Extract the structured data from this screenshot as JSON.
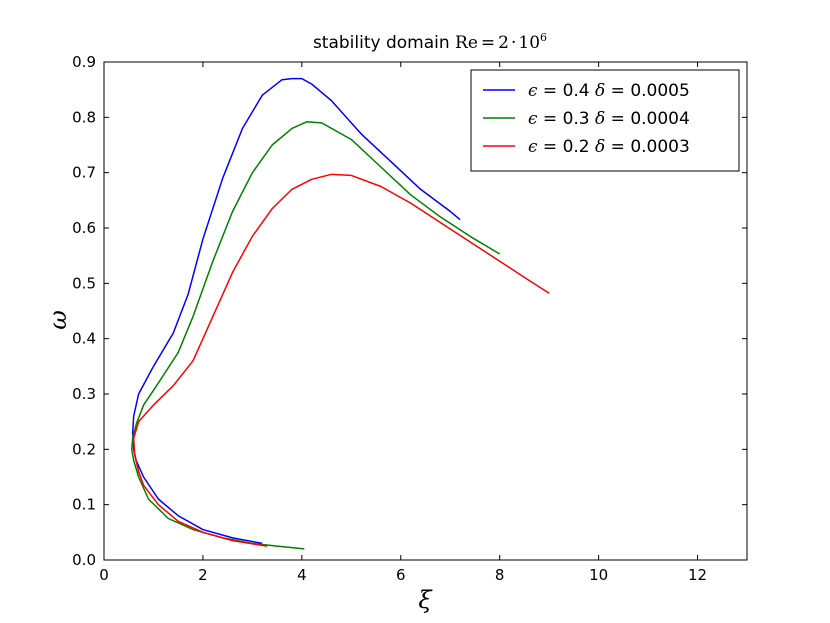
{
  "chart_data": {
    "type": "line",
    "title": {
      "prefix": "stability domain ",
      "re": "Re",
      "equals": "=",
      "mantissa": "2",
      "times": "·",
      "base": "10",
      "exponent": "6"
    },
    "xlabel": "ξ",
    "ylabel": "ω",
    "xlim": [
      0,
      13
    ],
    "ylim": [
      0,
      0.9
    ],
    "xticks": [
      "0",
      "2",
      "4",
      "6",
      "8",
      "10",
      "12"
    ],
    "yticks": [
      "0.0",
      "0.1",
      "0.2",
      "0.3",
      "0.4",
      "0.5",
      "0.6",
      "0.7",
      "0.8",
      "0.9"
    ],
    "grid": false,
    "legend_position": "top-right",
    "series": [
      {
        "name": "ε = 0.4 δ = 0.0005",
        "legend": {
          "eps_symbol": "ϵ",
          "eps_value": " = 0.4 ",
          "delta_symbol": "δ",
          "delta_value": " = 0.0005"
        },
        "color": "#0000ff",
        "x": [
          3.2,
          2.6,
          2.0,
          1.5,
          1.1,
          0.8,
          0.65,
          0.6,
          0.58,
          0.6,
          0.7,
          1.0,
          1.4,
          1.7,
          2.0,
          2.4,
          2.8,
          3.2,
          3.6,
          3.8,
          4.0,
          4.2,
          4.6,
          5.2,
          5.8,
          6.4,
          7.0,
          7.2
        ],
        "y": [
          0.03,
          0.04,
          0.055,
          0.08,
          0.11,
          0.15,
          0.18,
          0.2,
          0.23,
          0.26,
          0.3,
          0.35,
          0.41,
          0.48,
          0.58,
          0.69,
          0.78,
          0.84,
          0.868,
          0.87,
          0.87,
          0.86,
          0.83,
          0.77,
          0.72,
          0.67,
          0.63,
          0.615
        ]
      },
      {
        "name": "ε = 0.3 δ = 0.0004",
        "legend": {
          "eps_symbol": "ϵ",
          "eps_value": " = 0.3 ",
          "delta_symbol": "δ",
          "delta_value": " = 0.0004"
        },
        "color": "#008000",
        "x": [
          4.05,
          3.5,
          3.0,
          2.4,
          1.8,
          1.3,
          0.9,
          0.7,
          0.6,
          0.56,
          0.58,
          0.65,
          0.8,
          1.1,
          1.5,
          1.8,
          2.2,
          2.6,
          3.0,
          3.4,
          3.8,
          4.1,
          4.4,
          5.0,
          5.6,
          6.2,
          6.8,
          7.4,
          8.0
        ],
        "y": [
          0.02,
          0.025,
          0.03,
          0.04,
          0.055,
          0.075,
          0.11,
          0.15,
          0.18,
          0.2,
          0.22,
          0.245,
          0.28,
          0.32,
          0.375,
          0.44,
          0.54,
          0.63,
          0.7,
          0.75,
          0.78,
          0.792,
          0.79,
          0.76,
          0.71,
          0.66,
          0.62,
          0.585,
          0.553
        ]
      },
      {
        "name": "ε = 0.2 δ = 0.0003",
        "legend": {
          "eps_symbol": "ϵ",
          "eps_value": " = 0.2 ",
          "delta_symbol": "δ",
          "delta_value": " = 0.0003"
        },
        "color": "#ff0000",
        "x": [
          3.3,
          2.6,
          2.0,
          1.5,
          1.1,
          0.8,
          0.7,
          0.62,
          0.6,
          0.7,
          1.0,
          1.4,
          1.8,
          2.2,
          2.6,
          3.0,
          3.4,
          3.8,
          4.2,
          4.6,
          5.0,
          5.6,
          6.2,
          6.8,
          7.4,
          8.0,
          8.6,
          9.0
        ],
        "y": [
          0.025,
          0.035,
          0.05,
          0.07,
          0.1,
          0.135,
          0.16,
          0.19,
          0.22,
          0.25,
          0.28,
          0.315,
          0.36,
          0.44,
          0.52,
          0.585,
          0.635,
          0.67,
          0.688,
          0.697,
          0.695,
          0.675,
          0.645,
          0.61,
          0.575,
          0.54,
          0.505,
          0.482
        ]
      }
    ]
  }
}
